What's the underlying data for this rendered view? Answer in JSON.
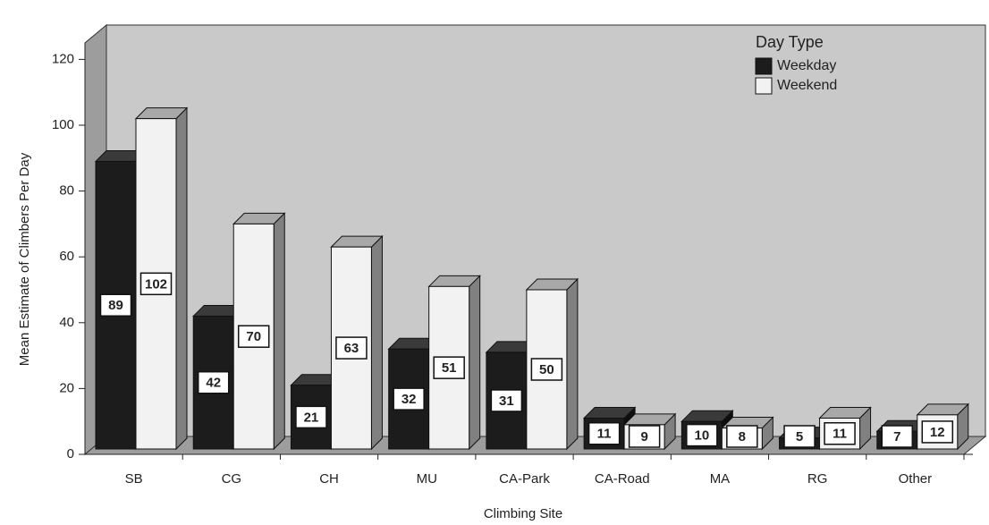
{
  "chart_data": {
    "type": "bar3d",
    "x_label": "Climbing Site",
    "y_label": "Mean Estimate of Climbers Per Day",
    "categories": [
      "SB",
      "CG",
      "CH",
      "MU",
      "CA-Park",
      "CA-Road",
      "MA",
      "RG",
      "Other"
    ],
    "series": [
      {
        "name": "Weekday",
        "color": "#1c1c1c",
        "values": [
          89,
          42,
          21,
          32,
          31,
          11,
          10,
          5,
          7
        ]
      },
      {
        "name": "Weekend",
        "color": "#f2f2f2",
        "values": [
          102,
          70,
          63,
          51,
          50,
          9,
          8,
          11,
          12
        ]
      }
    ],
    "ylim": [
      0,
      125
    ],
    "yticks": [
      0,
      20,
      40,
      60,
      80,
      100,
      120
    ],
    "legend_title": "Day Type",
    "legend": "upper right",
    "grid": false,
    "data_labels": true
  }
}
